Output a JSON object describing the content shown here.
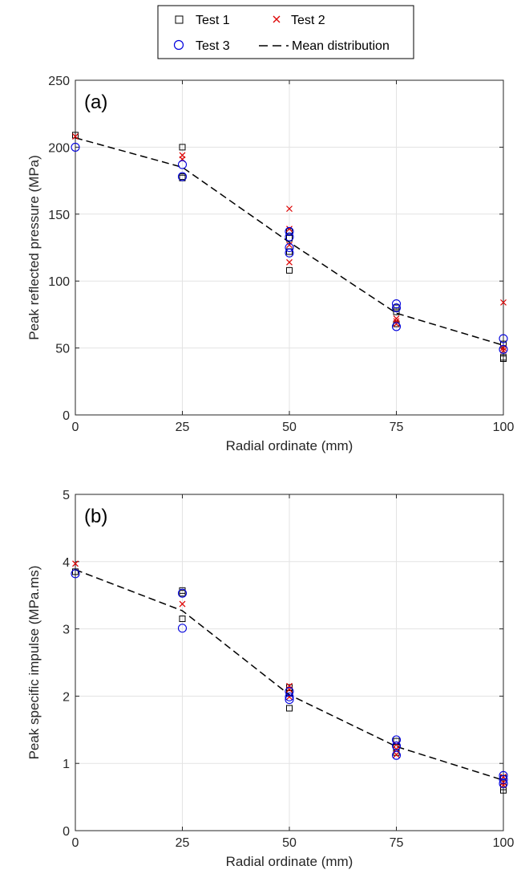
{
  "legend": {
    "items": [
      {
        "label": "Test 1",
        "marker": "square",
        "color": "#000000"
      },
      {
        "label": "Test 2",
        "marker": "x",
        "color": "#dd0000"
      },
      {
        "label": "Test 3",
        "marker": "circle",
        "color": "#0000dd"
      },
      {
        "label": "Mean distribution",
        "marker": "dashed-line",
        "color": "#000000"
      }
    ],
    "placement": "top-center"
  },
  "chart_data": [
    {
      "type": "scatter",
      "panel_label": "(a)",
      "xlabel": "Radial ordinate (mm)",
      "ylabel": "Peak reflected pressure (MPa)",
      "xlim": [
        0,
        100
      ],
      "ylim": [
        0,
        250
      ],
      "xticks": [
        "0",
        "25",
        "50",
        "75",
        "100"
      ],
      "yticks": [
        "0",
        "50",
        "100",
        "150",
        "200",
        "250"
      ],
      "grid": true,
      "series": [
        {
          "name": "Test 1",
          "marker": "square",
          "color": "#000000",
          "points": [
            [
              0,
              209
            ],
            [
              25,
              200
            ],
            [
              25,
              178
            ],
            [
              25,
              177
            ],
            [
              50,
              137
            ],
            [
              50,
              132
            ],
            [
              50,
              122
            ],
            [
              50,
              108
            ],
            [
              75,
              80
            ],
            [
              75,
              77
            ],
            [
              75,
              68
            ],
            [
              100,
              53
            ],
            [
              100,
              43
            ],
            [
              100,
              42
            ]
          ]
        },
        {
          "name": "Test 2",
          "marker": "x",
          "color": "#dd0000",
          "points": [
            [
              0,
              208
            ],
            [
              25,
              194
            ],
            [
              25,
              191
            ],
            [
              50,
              154
            ],
            [
              50,
              139
            ],
            [
              50,
              127
            ],
            [
              50,
              114
            ],
            [
              75,
              72
            ],
            [
              75,
              70
            ],
            [
              75,
              68
            ],
            [
              100,
              84
            ],
            [
              100,
              50
            ],
            [
              100,
              48
            ]
          ]
        },
        {
          "name": "Test 3",
          "marker": "circle",
          "color": "#0000dd",
          "points": [
            [
              0,
              200
            ],
            [
              25,
              187
            ],
            [
              25,
              178
            ],
            [
              50,
              137
            ],
            [
              50,
              133
            ],
            [
              50,
              125
            ],
            [
              50,
              121
            ],
            [
              75,
              83
            ],
            [
              75,
              80
            ],
            [
              75,
              66
            ],
            [
              100,
              57
            ],
            [
              100,
              49
            ]
          ]
        },
        {
          "name": "Mean distribution",
          "style": "dashed-line",
          "color": "#000000",
          "points": [
            [
              0,
              207
            ],
            [
              25,
              185
            ],
            [
              50,
              129
            ],
            [
              75,
              76
            ],
            [
              100,
              52
            ]
          ]
        }
      ]
    },
    {
      "type": "scatter",
      "panel_label": "(b)",
      "xlabel": "Radial ordinate (mm)",
      "ylabel": "Peak specific impulse (MPa.ms)",
      "xlim": [
        0,
        100
      ],
      "ylim": [
        0,
        5
      ],
      "xticks": [
        "0",
        "25",
        "50",
        "75",
        "100"
      ],
      "yticks": [
        "0",
        "1",
        "2",
        "3",
        "4",
        "5"
      ],
      "grid": true,
      "series": [
        {
          "name": "Test 1",
          "marker": "square",
          "color": "#000000",
          "points": [
            [
              0,
              3.85
            ],
            [
              25,
              3.57
            ],
            [
              25,
              3.53
            ],
            [
              25,
              3.15
            ],
            [
              50,
              2.13
            ],
            [
              50,
              2.04
            ],
            [
              50,
              1.82
            ],
            [
              75,
              1.33
            ],
            [
              75,
              1.24
            ],
            [
              75,
              1.16
            ],
            [
              100,
              0.78
            ],
            [
              100,
              0.65
            ],
            [
              100,
              0.6
            ]
          ]
        },
        {
          "name": "Test 2",
          "marker": "x",
          "color": "#dd0000",
          "points": [
            [
              0,
              3.97
            ],
            [
              25,
              3.37
            ],
            [
              50,
              2.15
            ],
            [
              50,
              2.1
            ],
            [
              50,
              1.99
            ],
            [
              75,
              1.28
            ],
            [
              75,
              1.21
            ],
            [
              75,
              1.13
            ],
            [
              100,
              0.8
            ],
            [
              100,
              0.72
            ],
            [
              100,
              0.68
            ]
          ]
        },
        {
          "name": "Test 3",
          "marker": "circle",
          "color": "#0000dd",
          "points": [
            [
              0,
              3.82
            ],
            [
              25,
              3.53
            ],
            [
              25,
              3.01
            ],
            [
              50,
              2.07
            ],
            [
              50,
              1.99
            ],
            [
              50,
              1.95
            ],
            [
              75,
              1.35
            ],
            [
              75,
              1.26
            ],
            [
              75,
              1.12
            ],
            [
              100,
              0.82
            ],
            [
              100,
              0.76
            ],
            [
              100,
              0.7
            ]
          ]
        },
        {
          "name": "Mean distribution",
          "style": "dashed-line",
          "color": "#000000",
          "points": [
            [
              0,
              3.88
            ],
            [
              25,
              3.27
            ],
            [
              50,
              2.02
            ],
            [
              75,
              1.25
            ],
            [
              100,
              0.75
            ]
          ]
        }
      ]
    }
  ]
}
